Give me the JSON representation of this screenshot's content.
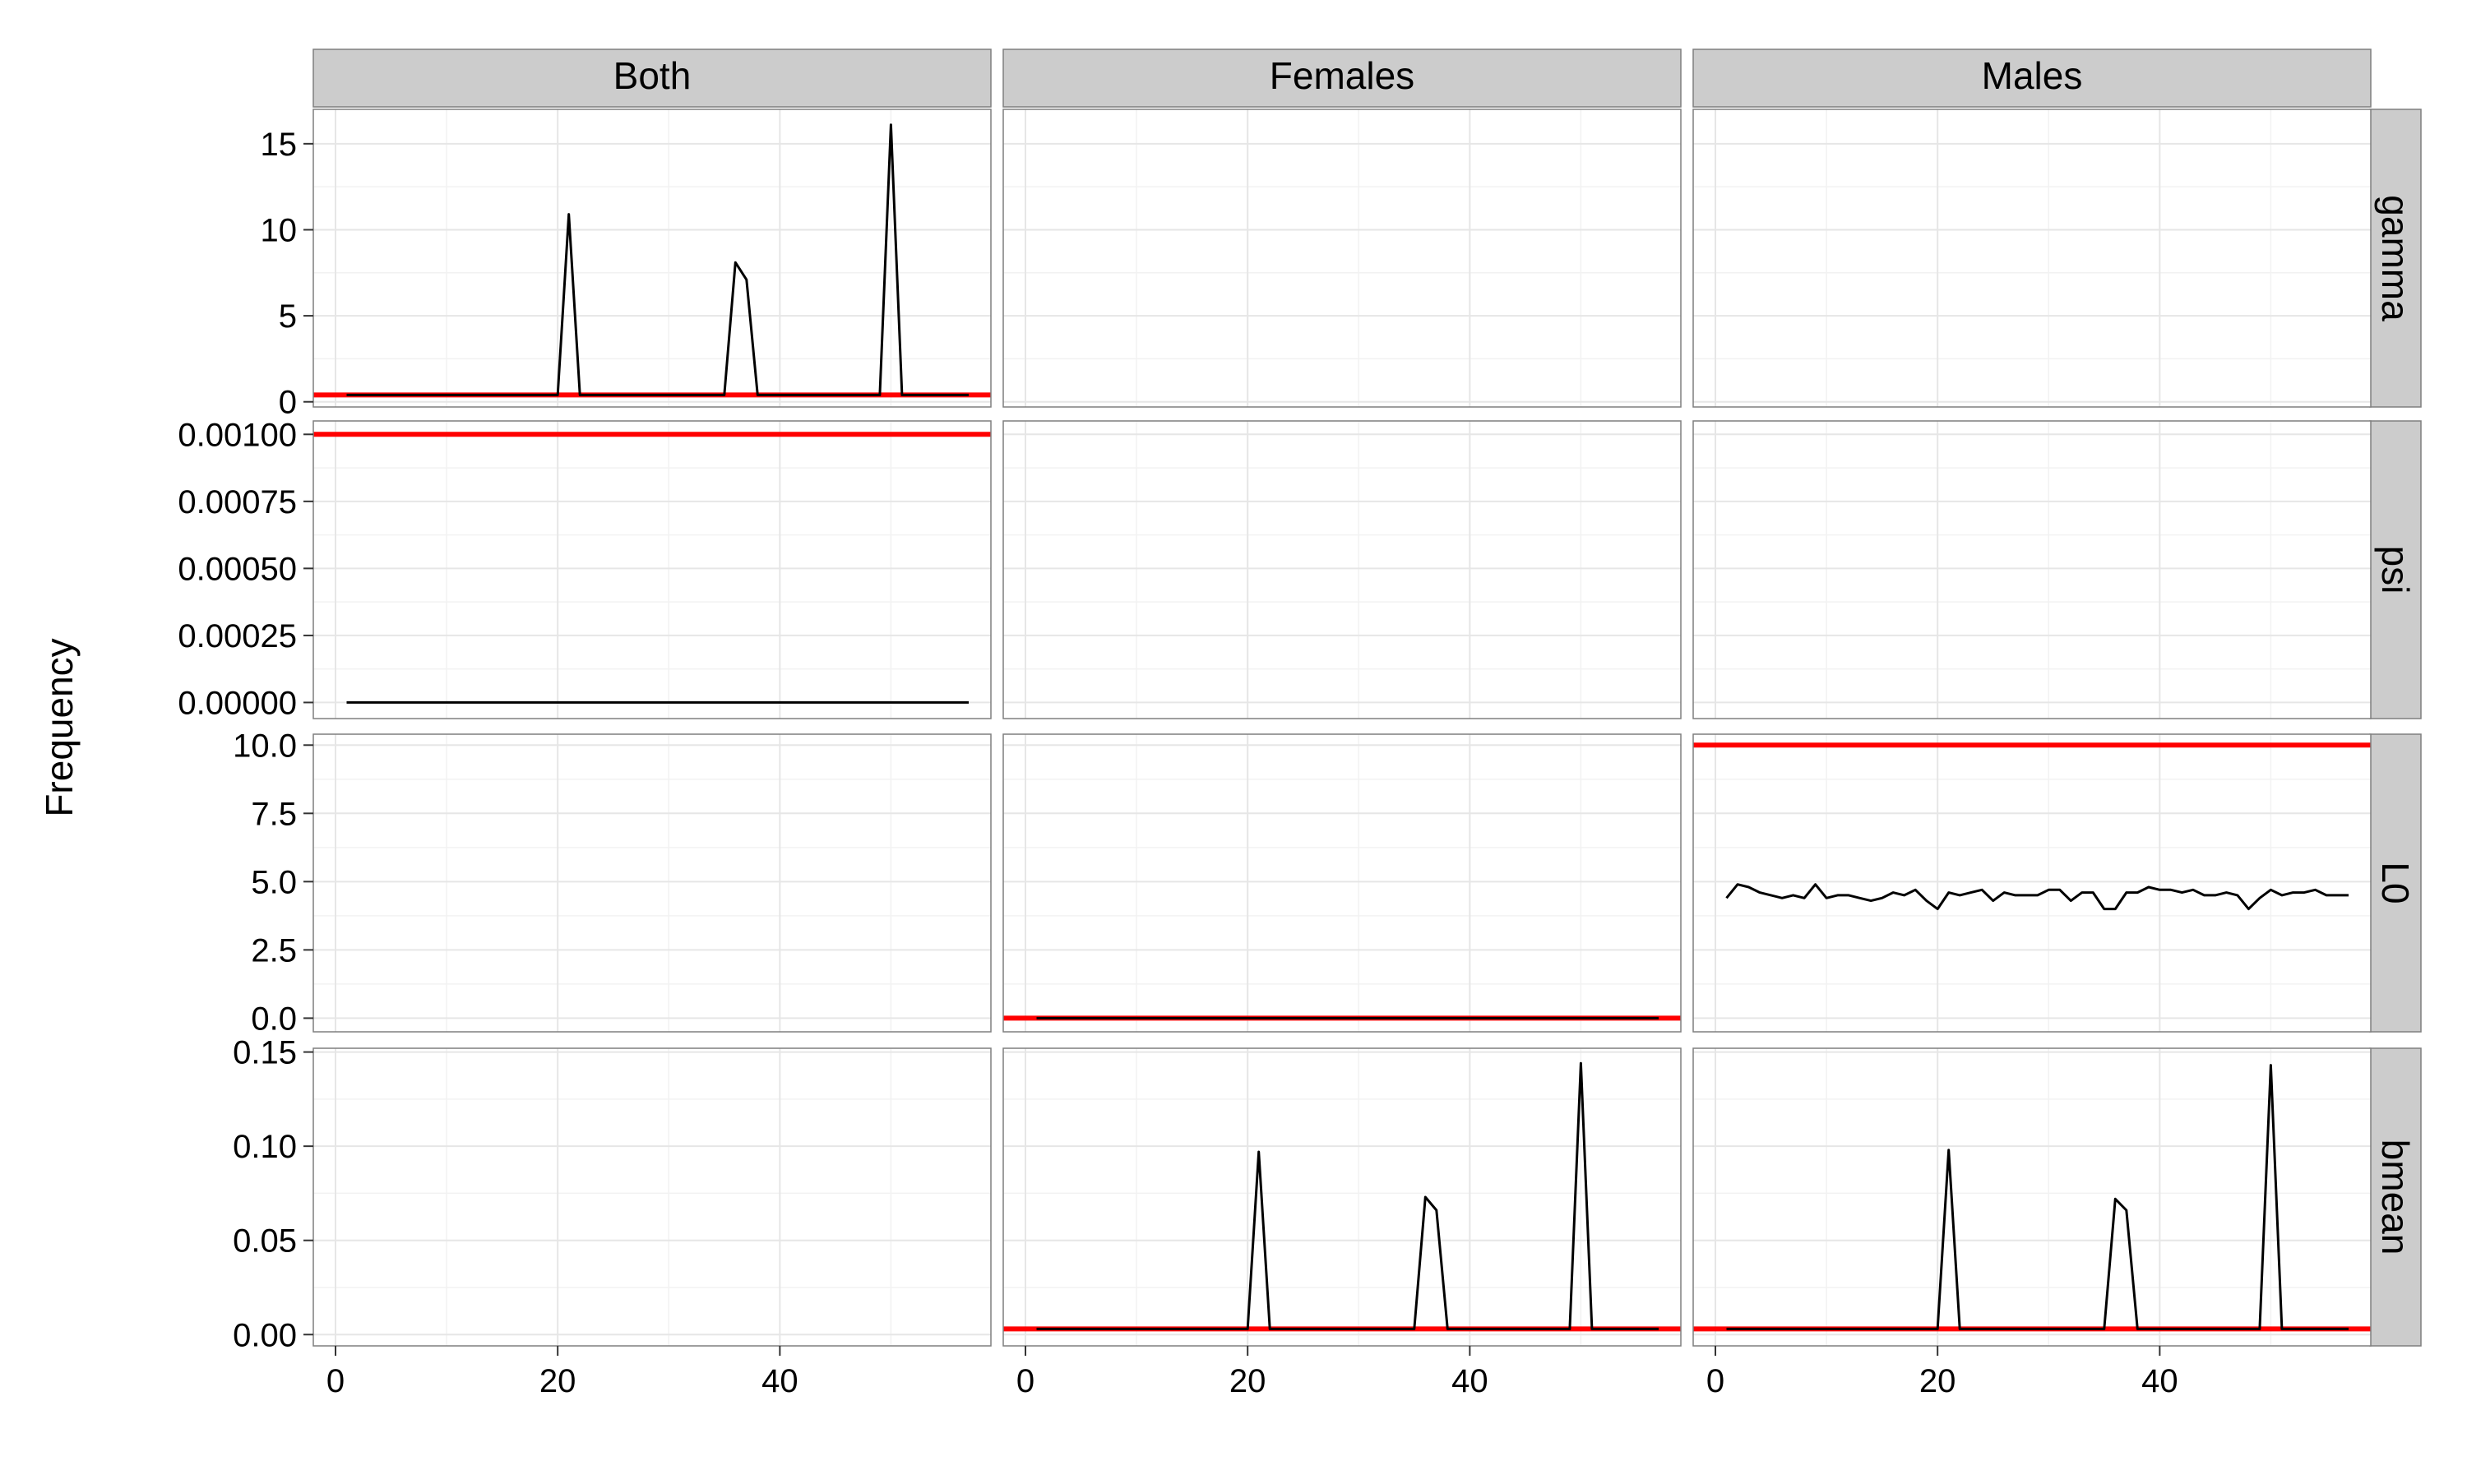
{
  "chart_data": {
    "type": "line",
    "ylabel": "Frequency",
    "xlabel": "",
    "xlim": [
      -2,
      59
    ],
    "x_ticks": [
      0,
      20,
      40
    ],
    "x_tick_labels": [
      "0",
      "20",
      "40"
    ],
    "grid": true,
    "colors": {
      "series": "#000000",
      "reference": "#ff0000",
      "strip": "#cccccc",
      "panel_border": "#7f7f7f",
      "grid": "#e6e6e6"
    },
    "columns": [
      "Both",
      "Females",
      "Males"
    ],
    "rows": [
      {
        "label": "gamma",
        "ylim": [
          -0.3,
          17
        ],
        "y_ticks": [
          0,
          5,
          10,
          15
        ],
        "y_tick_labels": [
          "0",
          "5",
          "10",
          "15"
        ]
      },
      {
        "label": "psi",
        "ylim": [
          -6e-05,
          0.00105
        ],
        "y_ticks": [
          0,
          0.00025,
          0.0005,
          0.00075,
          0.001
        ],
        "y_tick_labels": [
          "0.00000",
          "0.00025",
          "0.00050",
          "0.00075",
          "0.00100"
        ]
      },
      {
        "label": "L0",
        "ylim": [
          -0.5,
          10.4
        ],
        "y_ticks": [
          0,
          2.5,
          5,
          7.5,
          10
        ],
        "y_tick_labels": [
          "0.0",
          "2.5",
          "5.0",
          "7.5",
          "10.0"
        ]
      },
      {
        "label": "bmean",
        "ylim": [
          -0.006,
          0.152
        ],
        "y_ticks": [
          0,
          0.05,
          0.1,
          0.15
        ],
        "y_tick_labels": [
          "0.00",
          "0.05",
          "0.10",
          "0.15"
        ]
      }
    ],
    "panels": [
      {
        "row": 0,
        "col": 0,
        "reference": 0.4,
        "series": {
          "x": [
            1,
            20,
            21,
            22,
            35,
            36,
            37,
            38,
            49,
            50,
            51,
            57
          ],
          "y": [
            0.4,
            0.4,
            10.9,
            0.4,
            0.4,
            8.1,
            7.1,
            0.4,
            0.4,
            16.1,
            0.4,
            0.4
          ]
        }
      },
      {
        "row": 0,
        "col": 1
      },
      {
        "row": 0,
        "col": 2
      },
      {
        "row": 1,
        "col": 0,
        "reference": 0.001,
        "series": {
          "x": [
            1,
            57
          ],
          "y": [
            0,
            0
          ]
        }
      },
      {
        "row": 1,
        "col": 1
      },
      {
        "row": 1,
        "col": 2
      },
      {
        "row": 2,
        "col": 0
      },
      {
        "row": 2,
        "col": 1,
        "reference": 0,
        "series": {
          "x": [
            1,
            57
          ],
          "y": [
            0,
            0
          ]
        }
      },
      {
        "row": 2,
        "col": 2,
        "reference": 10,
        "series": {
          "x": [
            1,
            2,
            3,
            4,
            5,
            6,
            7,
            8,
            9,
            10,
            11,
            12,
            13,
            14,
            15,
            16,
            17,
            18,
            19,
            20,
            21,
            22,
            23,
            24,
            25,
            26,
            27,
            28,
            29,
            30,
            31,
            32,
            33,
            34,
            35,
            36,
            37,
            38,
            39,
            40,
            41,
            42,
            43,
            44,
            45,
            46,
            47,
            48,
            49,
            50,
            51,
            52,
            53,
            54,
            55,
            56,
            57
          ],
          "y": [
            4.4,
            4.9,
            4.8,
            4.6,
            4.5,
            4.4,
            4.5,
            4.4,
            4.9,
            4.4,
            4.5,
            4.5,
            4.4,
            4.3,
            4.4,
            4.6,
            4.5,
            4.7,
            4.3,
            4.0,
            4.6,
            4.5,
            4.6,
            4.7,
            4.3,
            4.6,
            4.5,
            4.5,
            4.5,
            4.7,
            4.7,
            4.3,
            4.6,
            4.6,
            4.0,
            4.0,
            4.6,
            4.6,
            4.8,
            4.7,
            4.7,
            4.6,
            4.7,
            4.5,
            4.5,
            4.6,
            4.5,
            4.0,
            4.4,
            4.7,
            4.5,
            4.6,
            4.6,
            4.7,
            4.5,
            4.5,
            4.5
          ]
        }
      },
      {
        "row": 3,
        "col": 0
      },
      {
        "row": 3,
        "col": 1,
        "reference": 0.003,
        "series": {
          "x": [
            1,
            20,
            21,
            22,
            35,
            36,
            37,
            38,
            49,
            50,
            51,
            57
          ],
          "y": [
            0.003,
            0.003,
            0.097,
            0.003,
            0.003,
            0.073,
            0.066,
            0.003,
            0.003,
            0.144,
            0.003,
            0.003
          ]
        }
      },
      {
        "row": 3,
        "col": 2,
        "reference": 0.003,
        "series": {
          "x": [
            1,
            20,
            21,
            22,
            35,
            36,
            37,
            38,
            49,
            50,
            51,
            57
          ],
          "y": [
            0.003,
            0.003,
            0.098,
            0.003,
            0.003,
            0.072,
            0.066,
            0.003,
            0.003,
            0.143,
            0.003,
            0.003
          ]
        }
      }
    ]
  }
}
